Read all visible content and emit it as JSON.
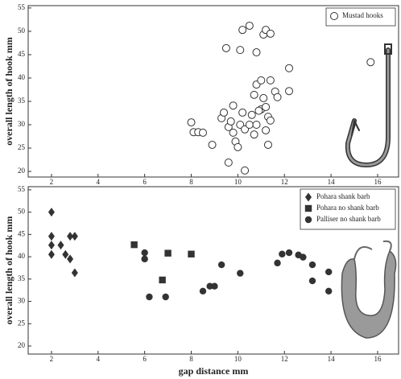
{
  "chart_data": [
    {
      "type": "scatter",
      "ylabel": "overall length of hook mm",
      "xlim": [
        1,
        16.9
      ],
      "ylim": [
        18.8,
        55.5
      ],
      "xticks": [
        2,
        4,
        6,
        8,
        10,
        12,
        14,
        16
      ],
      "yticks": [
        20,
        25,
        30,
        35,
        40,
        45,
        50,
        55
      ],
      "legend": "top right",
      "series": [
        {
          "name": "Mustad hooks",
          "marker": "open-circle",
          "color": "#333333",
          "x": [
            8.0,
            8.1,
            8.3,
            8.5,
            8.9,
            9.3,
            9.4,
            9.6,
            9.7,
            9.8,
            9.8,
            9.9,
            9.5,
            10.1,
            10.2,
            10.5,
            10.8,
            11.1,
            11.2,
            11.4,
            9.6,
            10.3,
            10.0,
            10.1,
            10.2,
            10.3,
            10.5,
            10.6,
            10.7,
            10.8,
            10.7,
            10.8,
            11.0,
            11.1,
            11.0,
            11.2,
            11.3,
            11.4,
            11.2,
            11.3,
            11.4,
            11.6,
            11.7,
            12.2,
            12.2,
            15.7,
            10.9
          ],
          "y": [
            30.5,
            28.4,
            28.4,
            28.3,
            25.7,
            31.4,
            32.6,
            29.5,
            30.7,
            28.3,
            34.1,
            26.4,
            46.4,
            46.0,
            50.3,
            51.2,
            45.5,
            49.3,
            50.3,
            49.5,
            21.9,
            20.2,
            25.2,
            30.0,
            32.6,
            29.0,
            30.0,
            32.1,
            27.9,
            30.0,
            36.4,
            38.6,
            39.5,
            35.7,
            33.3,
            33.8,
            31.7,
            30.9,
            28.8,
            25.7,
            39.5,
            37.1,
            35.9,
            42.1,
            37.2,
            43.4,
            33.0
          ]
        }
      ]
    },
    {
      "type": "scatter",
      "ylabel": "overall length of hook mm",
      "xlabel": "gap distance mm",
      "xlim": [
        1,
        16.9
      ],
      "ylim": [
        18.2,
        55.7
      ],
      "xticks": [
        2,
        4,
        6,
        8,
        10,
        12,
        14,
        16
      ],
      "yticks": [
        20,
        25,
        30,
        35,
        40,
        45,
        50,
        55
      ],
      "legend": "top right",
      "series": [
        {
          "name": "Pohara shank barb",
          "marker": "diamond",
          "color": "#333333",
          "x": [
            2.0,
            2.0,
            2.0,
            2.0,
            2.4,
            2.6,
            2.8,
            2.8,
            3.0,
            3.0
          ],
          "y": [
            50.0,
            44.6,
            42.6,
            40.5,
            42.6,
            40.5,
            39.5,
            44.6,
            44.6,
            36.4
          ]
        },
        {
          "name": "Pohara no shank barb",
          "marker": "square",
          "color": "#333333",
          "x": [
            5.55,
            7.0,
            8.0,
            6.76
          ],
          "y": [
            42.7,
            40.8,
            40.6,
            34.8
          ]
        },
        {
          "name": "Palliser no shank barb",
          "marker": "circle",
          "color": "#333333",
          "x": [
            6.0,
            6.0,
            6.2,
            6.9,
            8.5,
            8.8,
            9.0,
            9.3,
            10.1,
            11.7,
            11.9,
            12.2,
            12.6,
            12.8,
            13.2,
            13.2,
            13.9,
            13.9
          ],
          "y": [
            40.9,
            39.5,
            31.0,
            31.0,
            32.3,
            33.4,
            33.4,
            38.2,
            36.3,
            38.6,
            40.6,
            40.9,
            40.4,
            39.9,
            38.2,
            34.6,
            36.6,
            32.3
          ]
        }
      ]
    }
  ]
}
